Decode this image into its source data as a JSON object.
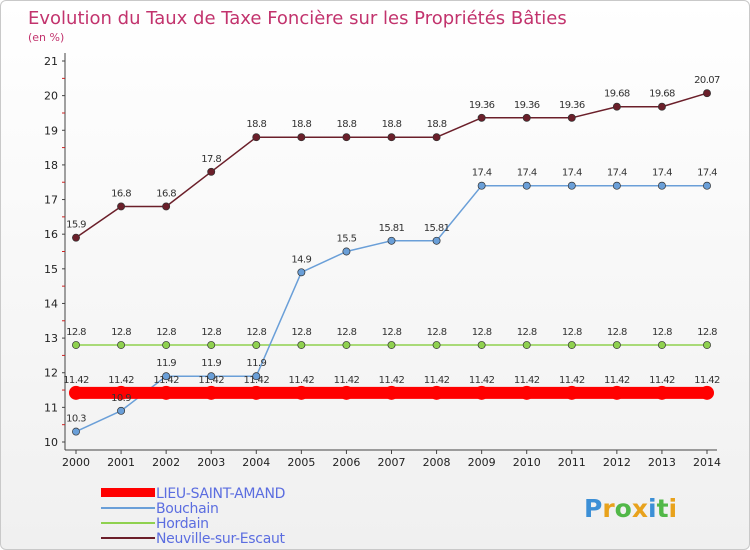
{
  "chart_data": {
    "type": "line",
    "title": "Evolution du Taux de Taxe Foncière sur les Propriétés Bâties",
    "subtitle": "(en %)",
    "xlabel": "",
    "ylabel": "(en %)",
    "ylim": [
      10,
      21
    ],
    "yticks": [
      "10",
      "11",
      "12",
      "13",
      "14",
      "15",
      "16",
      "17",
      "18",
      "19",
      "20",
      "21"
    ],
    "categories": [
      "2000",
      "2001",
      "2002",
      "2003",
      "2004",
      "2005",
      "2006",
      "2007",
      "2008",
      "2009",
      "2010",
      "2011",
      "2012",
      "2013",
      "2014"
    ],
    "series": [
      {
        "name": "LIEU-SAINT-AMAND",
        "color": "#ff0000",
        "values": [
          11.42,
          11.42,
          11.42,
          11.42,
          11.42,
          11.42,
          11.42,
          11.42,
          11.42,
          11.42,
          11.42,
          11.42,
          11.42,
          11.42,
          11.42
        ],
        "labels": [
          "11.42",
          "11.42",
          "11.42",
          "11.42",
          "11.42",
          "11.42",
          "11.42",
          "11.42",
          "11.42",
          "11.42",
          "11.42",
          "11.42",
          "11.42",
          "11.42",
          "11.42"
        ]
      },
      {
        "name": "Bouchain",
        "color": "#6a9fd8",
        "values": [
          10.3,
          10.9,
          11.9,
          11.9,
          11.9,
          14.9,
          15.5,
          15.81,
          15.81,
          17.4,
          17.4,
          17.4,
          17.4,
          17.4,
          17.4
        ],
        "labels": [
          "10.3",
          "10.9",
          "11.9",
          "11.9",
          "11.9",
          "14.9",
          "15.5",
          "15.81",
          "15.81",
          "17.4",
          "17.4",
          "17.4",
          "17.4",
          "17.4",
          "17.4"
        ]
      },
      {
        "name": "Hordain",
        "color": "#8fd14f",
        "values": [
          12.8,
          12.8,
          12.8,
          12.8,
          12.8,
          12.8,
          12.8,
          12.8,
          12.8,
          12.8,
          12.8,
          12.8,
          12.8,
          12.8,
          12.8
        ],
        "labels": [
          "12.8",
          "12.8",
          "12.8",
          "12.8",
          "12.8",
          "12.8",
          "12.8",
          "12.8",
          "12.8",
          "12.8",
          "12.8",
          "12.8",
          "12.8",
          "12.8",
          "12.8"
        ]
      },
      {
        "name": "Neuville-sur-Escaut",
        "color": "#6b1f2a",
        "values": [
          15.9,
          16.8,
          16.8,
          17.8,
          18.8,
          18.8,
          18.8,
          18.8,
          18.8,
          19.36,
          19.36,
          19.36,
          19.68,
          19.68,
          20.07
        ],
        "labels": [
          "15.9",
          "16.8",
          "16.8",
          "17.8",
          "18.8",
          "18.8",
          "18.8",
          "18.8",
          "18.8",
          "19.36",
          "19.36",
          "19.36",
          "19.68",
          "19.68",
          "20.07"
        ]
      }
    ],
    "legend": [
      "LIEU-SAINT-AMAND",
      "Bouchain",
      "Hordain",
      "Neuville-sur-Escaut"
    ],
    "legend_position": "bottom-left",
    "grid": false
  },
  "branding": {
    "logo_text": "Proxiti"
  }
}
